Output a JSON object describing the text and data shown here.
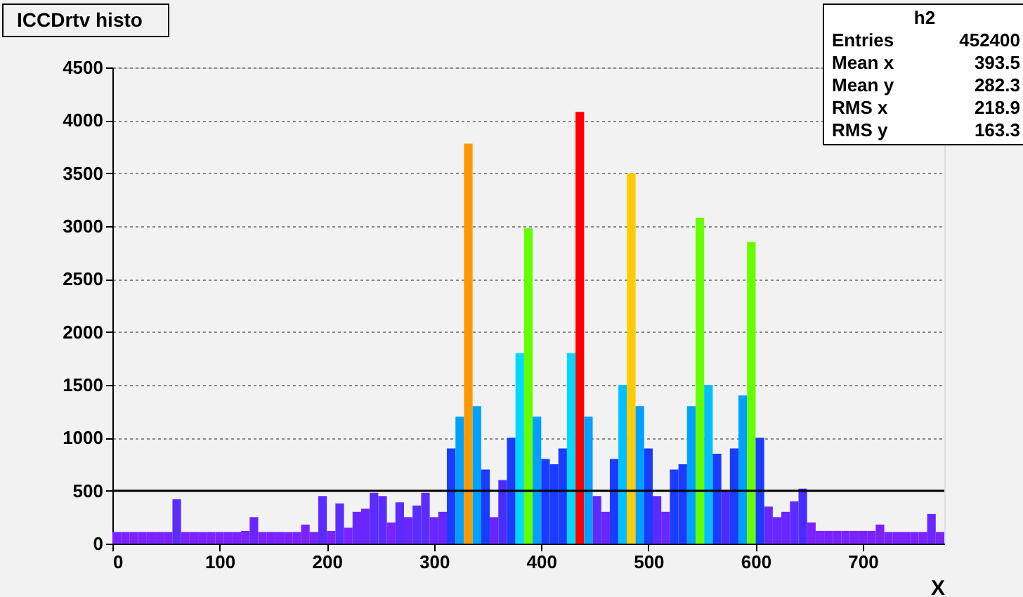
{
  "chart_data": {
    "type": "histogram",
    "title": "ICCDrtv histo",
    "xlabel": "X",
    "bins": [
      0,
      8,
      16,
      24,
      32,
      40,
      48,
      56,
      64,
      72,
      80,
      88,
      96,
      104,
      112,
      120,
      128,
      136,
      144,
      152,
      160,
      168,
      176,
      184,
      192,
      200,
      208,
      216,
      224,
      232,
      240,
      248,
      256,
      264,
      272,
      280,
      288,
      296,
      304,
      312,
      320,
      328,
      336,
      344,
      352,
      360,
      368,
      376,
      384,
      392,
      400,
      408,
      416,
      424,
      432,
      440,
      448,
      456,
      464,
      472,
      480,
      488,
      496,
      504,
      512,
      520,
      528,
      536,
      544,
      552,
      560,
      568,
      576,
      584,
      592,
      600,
      608,
      616,
      624,
      632,
      640,
      648,
      656,
      664,
      672,
      680,
      688,
      696,
      704,
      712,
      720,
      728,
      736,
      744,
      752,
      760,
      768,
      776
    ],
    "values": [
      110,
      110,
      110,
      110,
      110,
      110,
      110,
      420,
      110,
      110,
      110,
      110,
      110,
      110,
      110,
      120,
      250,
      110,
      110,
      110,
      110,
      110,
      180,
      110,
      450,
      120,
      380,
      150,
      300,
      330,
      480,
      450,
      200,
      390,
      250,
      360,
      480,
      250,
      300,
      900,
      1200,
      3780,
      1300,
      700,
      250,
      600,
      1000,
      1800,
      2980,
      1200,
      800,
      750,
      900,
      1800,
      4080,
      1200,
      450,
      300,
      800,
      1500,
      3500,
      1300,
      900,
      450,
      300,
      700,
      750,
      1300,
      3080,
      1500,
      850,
      500,
      900,
      1400,
      2850,
      1000,
      350,
      250,
      300,
      400,
      520,
      200,
      120,
      120,
      120,
      120,
      120,
      120,
      120,
      180,
      110,
      110,
      110,
      110,
      110,
      280,
      110
    ],
    "colors": [
      "#7a22ff",
      "#7a22ff",
      "#7a22ff",
      "#7a22ff",
      "#7a22ff",
      "#7a22ff",
      "#7a22ff",
      "#5a2cff",
      "#7a22ff",
      "#7a22ff",
      "#7a22ff",
      "#7a22ff",
      "#7a22ff",
      "#7a22ff",
      "#7a22ff",
      "#7a22ff",
      "#6a26ff",
      "#7a22ff",
      "#7a22ff",
      "#7a22ff",
      "#7a22ff",
      "#7a22ff",
      "#7a22ff",
      "#7a22ff",
      "#5a2cff",
      "#7a22ff",
      "#5a2cff",
      "#7a22ff",
      "#6a26ff",
      "#6a26ff",
      "#5a2cff",
      "#5a2cff",
      "#7a22ff",
      "#5a2cff",
      "#6a26ff",
      "#5a2cff",
      "#5a2cff",
      "#6a26ff",
      "#6a26ff",
      "#1a3cff",
      "#00a0ff",
      "#ff9900",
      "#00a0ff",
      "#1a3cff",
      "#6a26ff",
      "#4a2cff",
      "#1a3cff",
      "#00d8ff",
      "#66ff00",
      "#00a0ff",
      "#1a3cff",
      "#1a3cff",
      "#1a3cff",
      "#00d8ff",
      "#ff0000",
      "#00a0ff",
      "#5a2cff",
      "#6a26ff",
      "#1a3cff",
      "#00c0ff",
      "#ffcc00",
      "#00a0ff",
      "#1a3cff",
      "#5a2cff",
      "#6a26ff",
      "#1a3cff",
      "#1a3cff",
      "#00a0ff",
      "#66ff00",
      "#00c0ff",
      "#1a3cff",
      "#4a2cff",
      "#1a3cff",
      "#00a0ff",
      "#66ff00",
      "#1a3cff",
      "#6a26ff",
      "#6a26ff",
      "#6a26ff",
      "#5a2cff",
      "#4a2cff",
      "#7a22ff",
      "#7a22ff",
      "#7a22ff",
      "#7a22ff",
      "#7a22ff",
      "#7a22ff",
      "#7a22ff",
      "#7a22ff",
      "#7a22ff",
      "#7a22ff",
      "#7a22ff",
      "#7a22ff",
      "#7a22ff",
      "#7a22ff",
      "#6a26ff",
      "#7a22ff"
    ],
    "xlim": [
      0,
      776
    ],
    "xticks": [
      0,
      100,
      200,
      300,
      400,
      500,
      600,
      700
    ],
    "ylim": [
      0,
      4500
    ],
    "yticks": [
      0,
      500,
      1000,
      1500,
      2000,
      2500,
      3000,
      3500,
      4000,
      4500
    ],
    "grid": "y",
    "ref_lines": [
      {
        "axis": "y",
        "value": 500,
        "color": "#000000"
      }
    ],
    "annotations": [
      "h2",
      "Entries 452400",
      "Mean x 393.5",
      "Mean y 282.3",
      "RMS x 218.9",
      "RMS y 163.3"
    ]
  }
}
